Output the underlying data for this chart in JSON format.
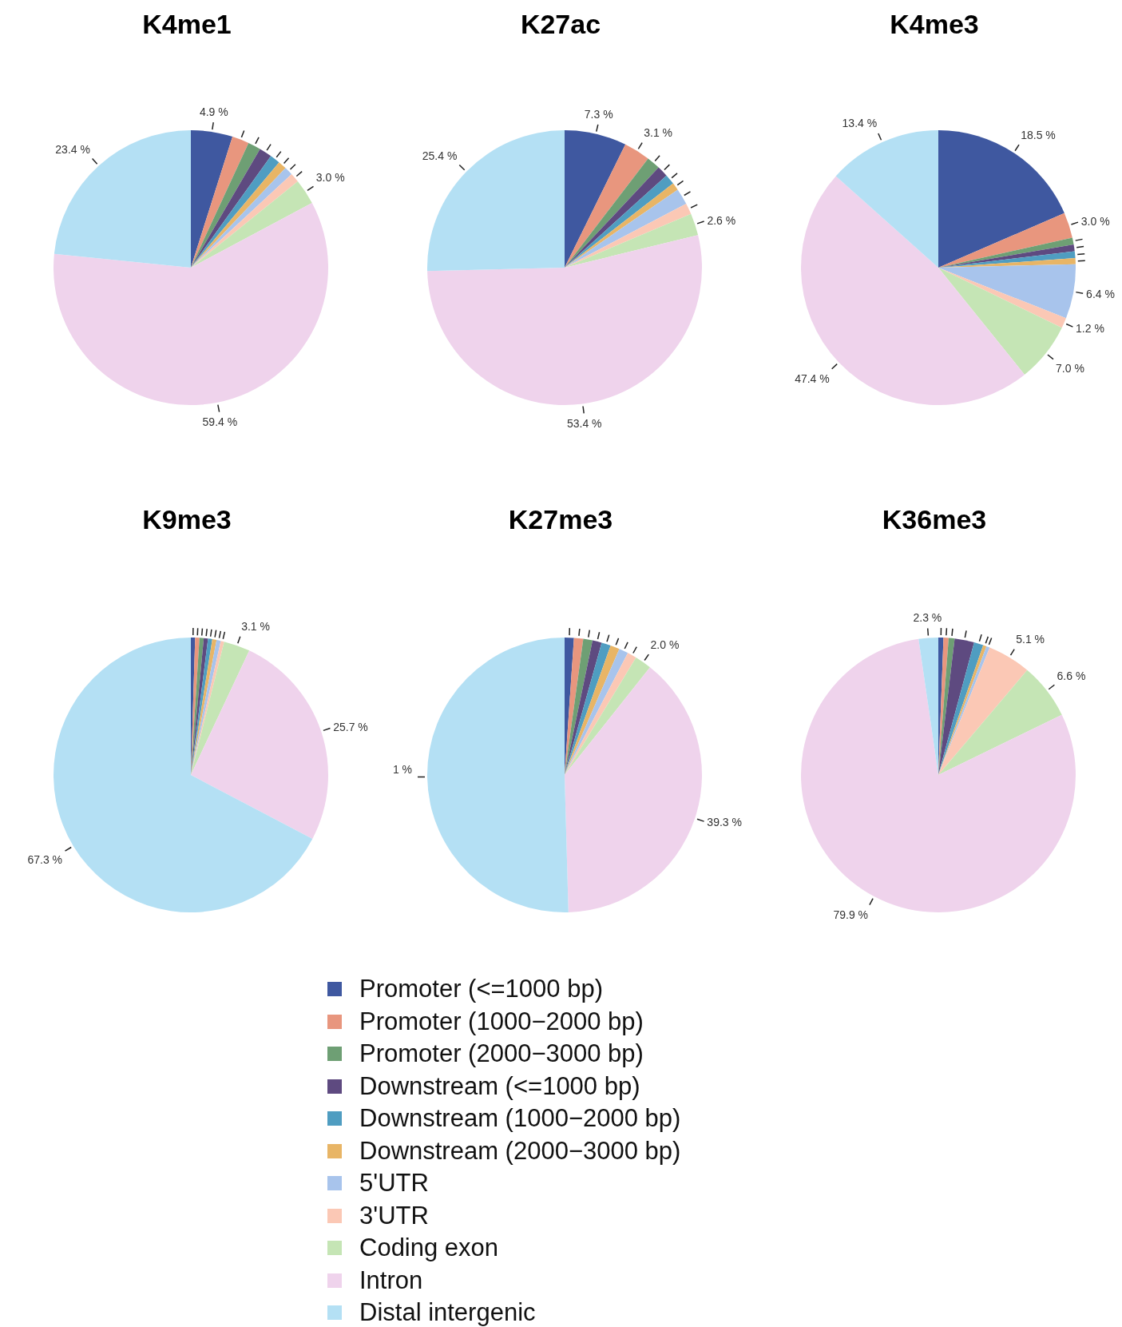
{
  "chart_data": [
    {
      "type": "pie",
      "title": "K4me1",
      "legend": "bottom",
      "categories": [
        "Promoter (<=1000 bp)",
        "Promoter (1000−2000 bp)",
        "Promoter (2000−3000 bp)",
        "Downstream (<=1000 bp)",
        "Downstream (1000−2000 bp)",
        "Downstream (2000−3000 bp)",
        "5'UTR",
        "3'UTR",
        "Coding exon",
        "Intron",
        "Distal intergenic"
      ],
      "colors": [
        "#3f58a0",
        "#e8967e",
        "#6e9f74",
        "#5e4a80",
        "#4f9dc1",
        "#e8b566",
        "#a8c4ec",
        "#fbc8b5",
        "#c5e5b5",
        "#efd3ec",
        "#b4e0f4"
      ],
      "values": [
        4.9,
        2.0,
        1.5,
        1.5,
        1.2,
        1.0,
        1.0,
        1.1,
        3.0,
        59.4,
        23.4
      ],
      "value_labels": [
        "4.9 %",
        null,
        null,
        null,
        null,
        null,
        null,
        null,
        "3.0 %",
        "59.4 %",
        "23.4 %"
      ]
    },
    {
      "type": "pie",
      "title": "K27ac",
      "categories": [
        null,
        null,
        null,
        null,
        null,
        null,
        null,
        null,
        null,
        null,
        null
      ],
      "colors": [
        "#3f58a0",
        "#e8967e",
        "#6e9f74",
        "#5e4a80",
        "#4f9dc1",
        "#e8b566",
        "#a8c4ec",
        "#fbc8b5",
        "#c5e5b5",
        "#efd3ec",
        "#b4e0f4"
      ],
      "values": [
        7.3,
        3.1,
        1.6,
        1.3,
        1.2,
        0.9,
        1.9,
        1.3,
        2.6,
        53.4,
        25.4
      ],
      "value_labels": [
        "7.3 %",
        "3.1 %",
        null,
        null,
        null,
        null,
        null,
        null,
        "2.6 %",
        "53.4 %",
        "25.4 %"
      ]
    },
    {
      "type": "pie",
      "title": "K4me3",
      "categories": [
        null,
        null,
        null,
        null,
        null,
        null,
        null,
        null,
        null,
        null,
        null
      ],
      "colors": [
        "#3f58a0",
        "#e8967e",
        "#6e9f74",
        "#5e4a80",
        "#4f9dc1",
        "#e8b566",
        "#a8c4ec",
        "#fbc8b5",
        "#c5e5b5",
        "#efd3ec",
        "#b4e0f4"
      ],
      "values": [
        18.5,
        3.0,
        0.8,
        0.8,
        0.8,
        0.7,
        6.4,
        1.2,
        7.0,
        47.4,
        13.4
      ],
      "value_labels": [
        "18.5 %",
        "3.0 %",
        null,
        null,
        null,
        null,
        "6.4 %",
        "1.2 %",
        "7.0 %",
        "47.4 %",
        "13.4 %"
      ]
    },
    {
      "type": "pie",
      "title": "K9me3",
      "categories": [
        null,
        null,
        null,
        null,
        null,
        null,
        null,
        null,
        null,
        null,
        null
      ],
      "colors": [
        "#3f58a0",
        "#e8967e",
        "#6e9f74",
        "#5e4a80",
        "#4f9dc1",
        "#e8b566",
        "#a8c4ec",
        "#fbc8b5",
        "#c5e5b5",
        "#efd3ec",
        "#b4e0f4"
      ],
      "values": [
        0.5,
        0.5,
        0.5,
        0.5,
        0.5,
        0.5,
        0.5,
        0.4,
        3.1,
        25.7,
        67.3
      ],
      "value_labels": [
        null,
        null,
        null,
        null,
        null,
        null,
        null,
        null,
        "3.1 %",
        "25.7 %",
        "67.3 %"
      ]
    },
    {
      "type": "pie",
      "title": "K27me3",
      "categories": [
        null,
        null,
        null,
        null,
        null,
        null,
        null,
        null,
        null,
        null,
        null
      ],
      "colors": [
        "#3f58a0",
        "#e8967e",
        "#6e9f74",
        "#5e4a80",
        "#4f9dc1",
        "#e8b566",
        "#a8c4ec",
        "#fbc8b5",
        "#c5e5b5",
        "#efd3ec",
        "#b4e0f4"
      ],
      "values": [
        1.1,
        1.1,
        1.1,
        1.1,
        1.1,
        1.1,
        1.1,
        1.1,
        2.0,
        39.3,
        51.0
      ],
      "value_labels": [
        null,
        null,
        null,
        null,
        null,
        null,
        null,
        null,
        "2.0 %",
        "39.3 %",
        null
      ],
      "annotations": [
        "1 %"
      ]
    },
    {
      "type": "pie",
      "title": "K36me3",
      "categories": [
        null,
        null,
        null,
        null,
        null,
        null,
        null,
        null,
        null,
        null,
        null
      ],
      "colors": [
        "#3f58a0",
        "#e8967e",
        "#6e9f74",
        "#5e4a80",
        "#4f9dc1",
        "#e8b566",
        "#a8c4ec",
        "#fbc8b5",
        "#c5e5b5",
        "#efd3ec",
        "#b4e0f4"
      ],
      "values": [
        0.6,
        0.6,
        0.7,
        2.3,
        1.1,
        0.4,
        0.4,
        5.1,
        6.6,
        79.9,
        2.3
      ],
      "value_labels": [
        null,
        null,
        null,
        null,
        null,
        null,
        null,
        "5.1 %",
        "6.6 %",
        "79.9 %",
        "2.3 %"
      ]
    }
  ]
}
